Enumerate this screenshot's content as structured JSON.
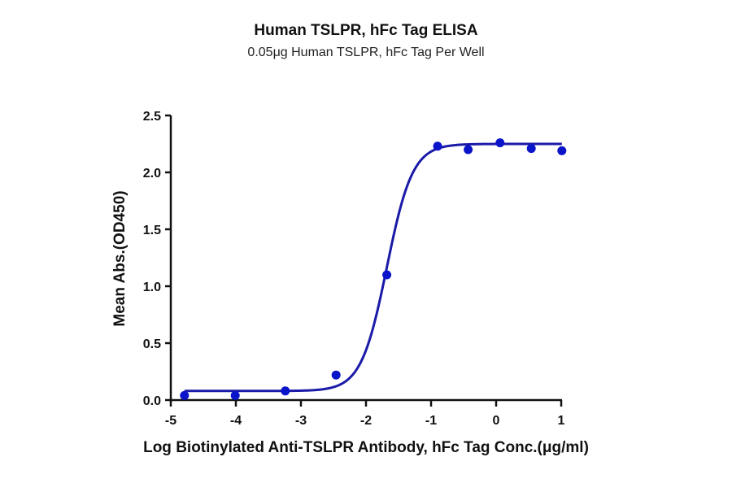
{
  "chart_data": {
    "type": "scatter",
    "title": "Human TSLPR, hFc Tag ELISA",
    "subtitle": "0.05μg Human TSLPR, hFc Tag Per Well",
    "xlabel": "Log Biotinylated Anti-TSLPR Antibody, hFc Tag Conc.(μg/ml)",
    "ylabel": "Mean Abs.(OD450)",
    "xlim": [
      -5,
      1
    ],
    "ylim": [
      0,
      2.5
    ],
    "x_ticks": [
      -5,
      -4,
      -3,
      -2,
      -1,
      0,
      1
    ],
    "y_ticks": [
      "0.0",
      "0.5",
      "1.0",
      "1.5",
      "2.0",
      "2.5"
    ],
    "grid": false,
    "legend": null,
    "series": [
      {
        "name": "Data points",
        "color": "#0a14c8",
        "x": [
          -4.79,
          -4.01,
          -3.24,
          -2.46,
          -1.68,
          -0.9,
          -0.43,
          0.06,
          0.54,
          1.01
        ],
        "y": [
          0.04,
          0.04,
          0.08,
          0.22,
          1.1,
          2.23,
          2.2,
          2.26,
          2.21,
          2.19
        ]
      }
    ],
    "fit": {
      "model": "4PL sigmoidal",
      "bottom": 0.08,
      "top": 2.25,
      "logEC50": -1.68,
      "hill": 2.2,
      "color": "#1a1aa8"
    }
  }
}
